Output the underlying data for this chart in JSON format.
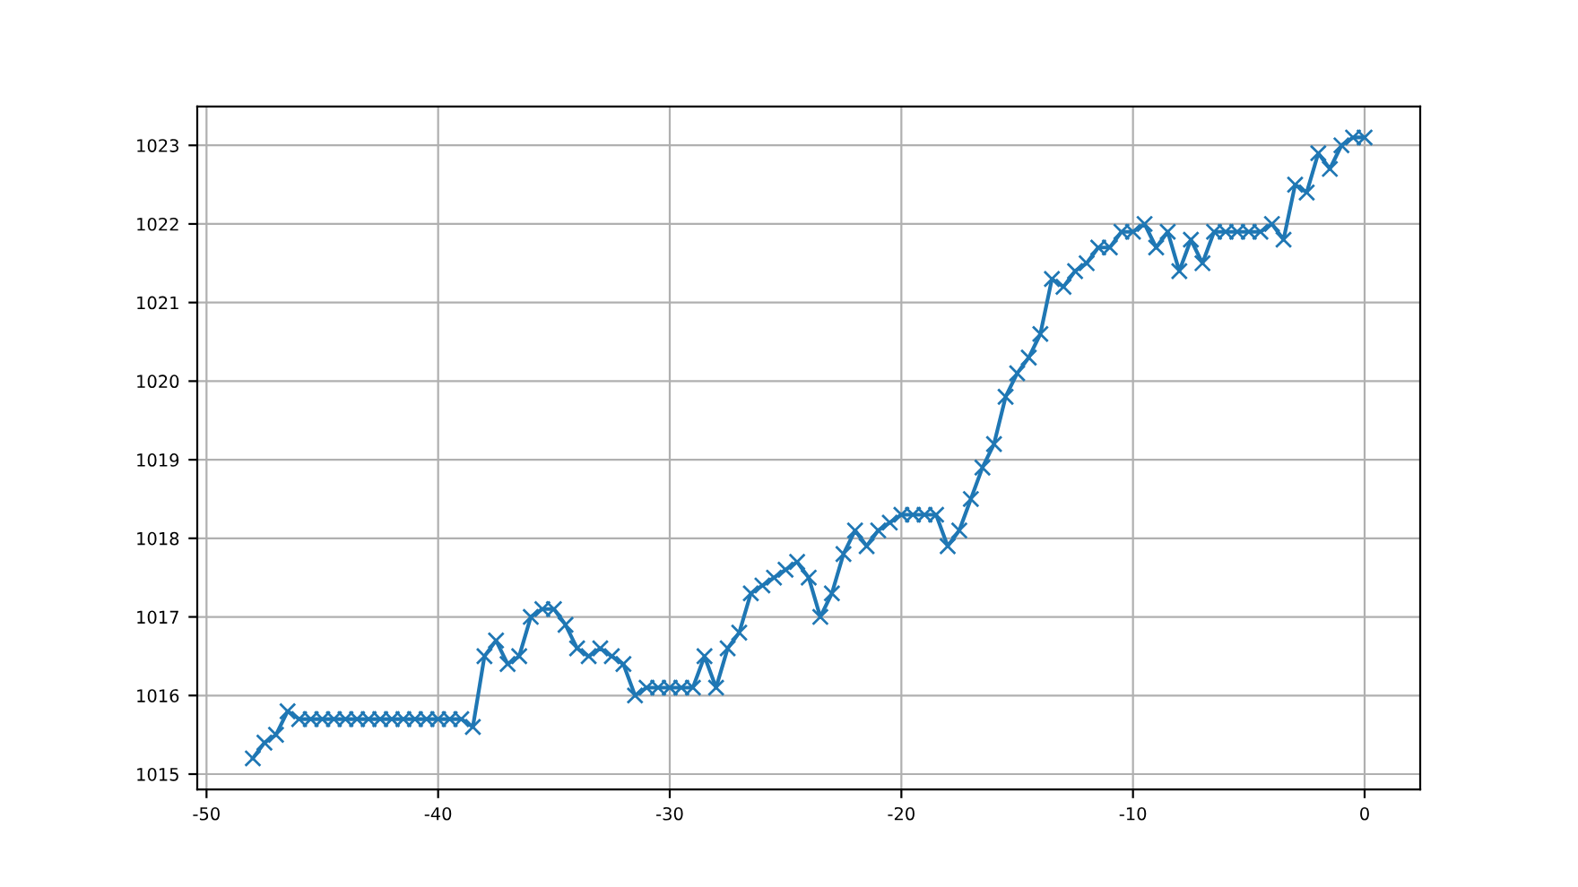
{
  "chart_data": {
    "type": "line",
    "x": [
      -48,
      -47.5,
      -47,
      -46.5,
      -46,
      -45.5,
      -45,
      -44.5,
      -44,
      -43.5,
      -43,
      -42.5,
      -42,
      -41.5,
      -41,
      -40.5,
      -40,
      -39.5,
      -39,
      -38.5,
      -38,
      -37.5,
      -37,
      -36.5,
      -36,
      -35.5,
      -35,
      -34.5,
      -34,
      -33.5,
      -33,
      -32.5,
      -32,
      -31.5,
      -31,
      -30.5,
      -30,
      -29.5,
      -29,
      -28.5,
      -28,
      -27.5,
      -27,
      -26.5,
      -26,
      -25.5,
      -25,
      -24.5,
      -24,
      -23.5,
      -23,
      -22.5,
      -22,
      -21.5,
      -21,
      -20.5,
      -20,
      -19.5,
      -19,
      -18.5,
      -18,
      -17.5,
      -17,
      -16.5,
      -16,
      -15.5,
      -15,
      -14.5,
      -14,
      -13.5,
      -13,
      -12.5,
      -12,
      -11.5,
      -11,
      -10.5,
      -10,
      -9.5,
      -9,
      -8.5,
      -8,
      -7.5,
      -7,
      -6.5,
      -6,
      -5.5,
      -5,
      -4.5,
      -4,
      -3.5,
      -3,
      -2.5,
      -2,
      -1.5,
      -1,
      -0.5,
      0
    ],
    "series": [
      {
        "color": "#1f77b4",
        "values": [
          1015.2,
          1015.4,
          1015.5,
          1015.8,
          1015.7,
          1015.7,
          1015.7,
          1015.7,
          1015.7,
          1015.7,
          1015.7,
          1015.7,
          1015.7,
          1015.7,
          1015.7,
          1015.7,
          1015.7,
          1015.7,
          1015.7,
          1015.6,
          1016.5,
          1016.7,
          1016.4,
          1016.5,
          1017.0,
          1017.1,
          1017.1,
          1016.9,
          1016.6,
          1016.5,
          1016.6,
          1016.5,
          1016.4,
          1016.0,
          1016.1,
          1016.1,
          1016.1,
          1016.1,
          1016.1,
          1016.5,
          1016.1,
          1016.6,
          1016.8,
          1017.3,
          1017.4,
          1017.5,
          1017.6,
          1017.7,
          1017.5,
          1017.0,
          1017.3,
          1017.8,
          1018.1,
          1017.9,
          1018.1,
          1018.2,
          1018.3,
          1018.3,
          1018.3,
          1018.3,
          1017.9,
          1018.1,
          1018.5,
          1018.9,
          1019.2,
          1019.8,
          1020.1,
          1020.3,
          1020.6,
          1021.3,
          1021.2,
          1021.4,
          1021.5,
          1021.7,
          1021.7,
          1021.9,
          1021.9,
          1022.0,
          1021.7,
          1021.9,
          1021.4,
          1021.8,
          1021.5,
          1021.9,
          1021.9,
          1021.9,
          1021.9,
          1021.9,
          1022.0,
          1021.8,
          1022.5,
          1022.4,
          1022.9,
          1022.7,
          1023.0,
          1023.1,
          1023.1
        ]
      }
    ],
    "xlim": [
      -50.4,
      2.4
    ],
    "ylim": [
      1014.805,
      1023.495
    ],
    "xticks": [
      -50,
      -40,
      -30,
      -20,
      -10,
      0
    ],
    "yticks": [
      1015,
      1016,
      1017,
      1018,
      1019,
      1020,
      1021,
      1022,
      1023
    ],
    "grid": true,
    "marker": "cross",
    "line_style": "solid"
  }
}
